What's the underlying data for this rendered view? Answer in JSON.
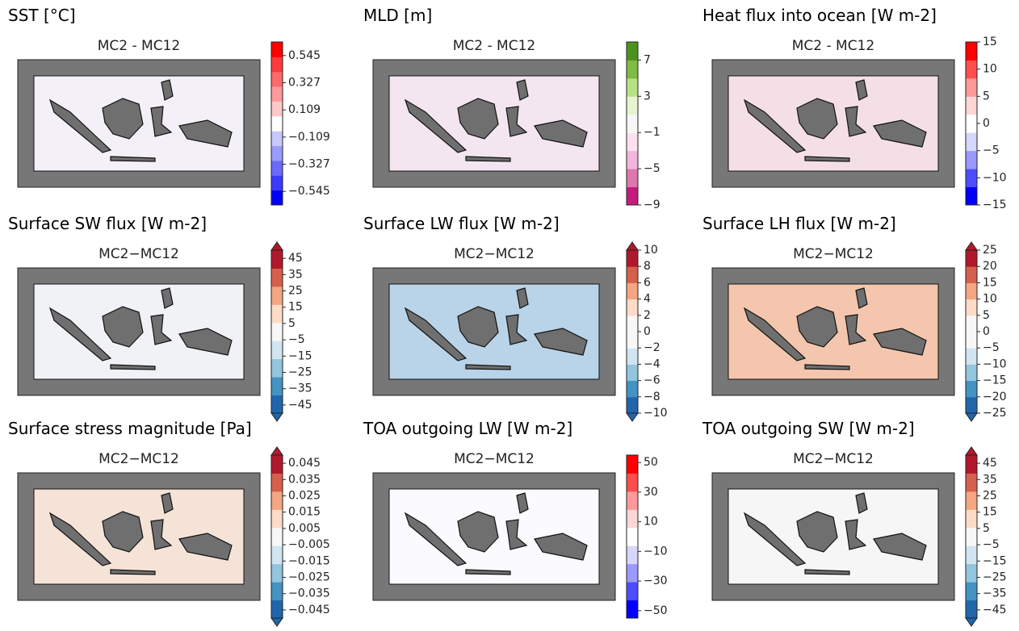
{
  "panels": [
    {
      "title": "SST [°C]",
      "subtitle": "MC2 - MC12",
      "lim": [
        -0.654,
        0.654
      ],
      "extend": false,
      "ticks": [
        {
          "value": -0.545,
          "label": "−0.545"
        },
        {
          "value": -0.327,
          "label": "−0.327"
        },
        {
          "value": -0.109,
          "label": "−0.109"
        },
        0.109,
        0.327,
        0.545
      ],
      "colors": [
        "#0000ff",
        "#3a3aff",
        "#6a6aff",
        "#9a9aff",
        "#c8c8ff",
        "#ffffff",
        "#ffc8c8",
        "#ff9a9a",
        "#ff6a6a",
        "#ff3a3a",
        "#ff0000"
      ]
    },
    {
      "title": "MLD [m]",
      "subtitle": "MC2 - MC12",
      "lim": [
        -9,
        9
      ],
      "extend": false,
      "ticks": [
        {
          "value": -9,
          "label": "−9"
        },
        {
          "value": -5,
          "label": "−5"
        },
        {
          "value": -1,
          "label": "−1"
        },
        3,
        7
      ],
      "colors": [
        "#c51b7d",
        "#de77ae",
        "#f1b6da",
        "#fde0ef",
        "#f7f7f7",
        "#e6f5d0",
        "#b8e186",
        "#7fbc41",
        "#4d9221"
      ]
    },
    {
      "title": "Heat flux into ocean [W m-2]",
      "subtitle": "MC2 - MC12",
      "lim": [
        -15,
        15
      ],
      "extend": false,
      "ticks": [
        {
          "value": -15,
          "label": "−15"
        },
        {
          "value": -10,
          "label": "−10"
        },
        {
          "value": -5,
          "label": "−5"
        },
        0,
        5,
        10,
        15
      ],
      "colors": [
        "#0000ff",
        "#4d4dff",
        "#9999ff",
        "#d6d6ff",
        "#ffffff",
        "#ffd6d6",
        "#ff9999",
        "#ff4d4d",
        "#ff0000"
      ]
    },
    {
      "title": "Surface SW flux [W m-2]",
      "subtitle": "MC2−MC12",
      "lim": [
        -50,
        50
      ],
      "extend": true,
      "ticks": [
        {
          "value": -45,
          "label": "−45"
        },
        {
          "value": -35,
          "label": "−35"
        },
        {
          "value": -25,
          "label": "−25"
        },
        {
          "value": -15,
          "label": "−15"
        },
        {
          "value": -5,
          "label": "−5"
        },
        5,
        15,
        25,
        35,
        45
      ],
      "colors": [
        "#2166ac",
        "#4393c3",
        "#92c5de",
        "#d1e5f0",
        "#f7f7f7",
        "#fddbc7",
        "#f4a582",
        "#d6604d",
        "#b2182b"
      ]
    },
    {
      "title": "Surface LW flux [W m-2]",
      "subtitle": "MC2−MC12",
      "lim": [
        -10,
        10
      ],
      "extend": true,
      "ticks": [
        {
          "value": -10,
          "label": "−10"
        },
        {
          "value": -8,
          "label": "−8"
        },
        {
          "value": -6,
          "label": "−6"
        },
        {
          "value": -4,
          "label": "−4"
        },
        {
          "value": -2,
          "label": "−2"
        },
        0,
        2,
        4,
        6,
        8,
        10
      ],
      "colors": [
        "#2166ac",
        "#4393c3",
        "#92c5de",
        "#d1e5f0",
        "#f7f7f7",
        "#f7f7f7",
        "#fddbc7",
        "#f4a582",
        "#d6604d",
        "#b2182b"
      ]
    },
    {
      "title": "Surface LH flux [W m-2]",
      "subtitle": "MC2−MC12",
      "lim": [
        -25,
        25
      ],
      "extend": true,
      "ticks": [
        {
          "value": -25,
          "label": "−25"
        },
        {
          "value": -20,
          "label": "−20"
        },
        {
          "value": -15,
          "label": "−15"
        },
        {
          "value": -10,
          "label": "−10"
        },
        {
          "value": -5,
          "label": "−5"
        },
        0,
        5,
        10,
        15,
        20,
        25
      ],
      "colors": [
        "#2166ac",
        "#4393c3",
        "#92c5de",
        "#d1e5f0",
        "#f7f7f7",
        "#f7f7f7",
        "#fddbc7",
        "#f4a582",
        "#d6604d",
        "#b2182b"
      ]
    },
    {
      "title": "Surface stress magnitude [Pa]",
      "subtitle": "MC2−MC12",
      "lim": [
        -0.05,
        0.05
      ],
      "extend": true,
      "ticks": [
        {
          "value": -0.045,
          "label": "−0.045"
        },
        {
          "value": -0.035,
          "label": "−0.035"
        },
        {
          "value": -0.025,
          "label": "−0.025"
        },
        {
          "value": -0.015,
          "label": "−0.015"
        },
        {
          "value": -0.005,
          "label": "−0.005"
        },
        0.005,
        0.015,
        0.025,
        0.035,
        0.045
      ],
      "colors": [
        "#2166ac",
        "#4393c3",
        "#92c5de",
        "#d1e5f0",
        "#f7f7f7",
        "#fddbc7",
        "#f4a582",
        "#d6604d",
        "#b2182b"
      ]
    },
    {
      "title": "TOA outgoing LW [W m-2]",
      "subtitle": "MC2−MC12",
      "lim": [
        -55,
        55
      ],
      "extend": false,
      "ticks": [
        {
          "value": -50,
          "label": "−50"
        },
        {
          "value": -30,
          "label": "−30"
        },
        {
          "value": -10,
          "label": "−10"
        },
        10,
        30,
        50
      ],
      "colors": [
        "#0000ff",
        "#4d4dff",
        "#9999ff",
        "#d6d6ff",
        "#ffffff",
        "#ffd6d6",
        "#ff9999",
        "#ff4d4d",
        "#ff0000"
      ]
    },
    {
      "title": "TOA outgoing SW [W m-2]",
      "subtitle": "MC2−MC12",
      "lim": [
        -50,
        50
      ],
      "extend": true,
      "ticks": [
        {
          "value": -45,
          "label": "−45"
        },
        {
          "value": -35,
          "label": "−35"
        },
        {
          "value": -25,
          "label": "−25"
        },
        {
          "value": -15,
          "label": "−15"
        },
        {
          "value": -5,
          "label": "−5"
        },
        5,
        15,
        25,
        35,
        45
      ],
      "colors": [
        "#2166ac",
        "#4393c3",
        "#92c5de",
        "#d1e5f0",
        "#f7f7f7",
        "#fddbc7",
        "#f4a582",
        "#d6604d",
        "#b2182b"
      ]
    }
  ]
}
